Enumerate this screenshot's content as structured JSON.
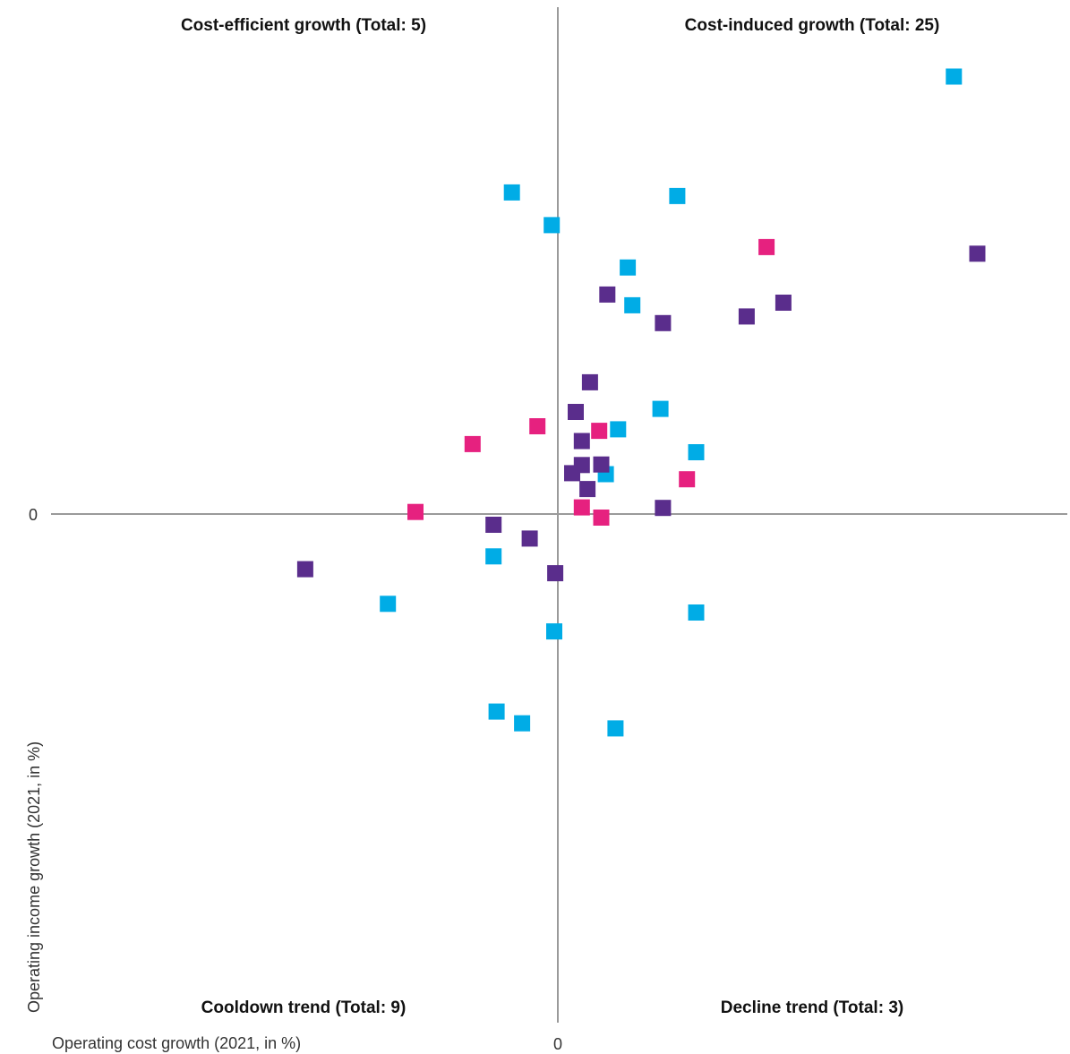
{
  "colors": {
    "series_cyan": "#00ACE6",
    "series_purple": "#5A2D8C",
    "series_magenta": "#E6217F",
    "axis": "#9A9A9A"
  },
  "chart_data": {
    "type": "scatter",
    "title": "",
    "xlabel": "Operating cost growth (2021, in %)",
    "ylabel": "Operating income growth (2021, in %)",
    "x_tick_labels": [
      "0"
    ],
    "y_tick_labels": [
      "0"
    ],
    "quadrants": {
      "top_left": "Cost-efficient growth (Total: 5)",
      "top_right": "Cost-induced growth (Total: 25)",
      "bottom_left": "Cooldown trend (Total: 9)",
      "bottom_right": "Decline trend (Total: 3)"
    },
    "xlim": [
      -1.0,
      1.0
    ],
    "ylim": [
      -1.0,
      1.0
    ],
    "grid": false,
    "legend": "none",
    "series": [
      {
        "color": "#00ACE6",
        "points": [
          [
            0.776,
            0.857
          ],
          [
            -0.09,
            0.63
          ],
          [
            -0.012,
            0.566
          ],
          [
            0.234,
            0.623
          ],
          [
            0.137,
            0.483
          ],
          [
            0.146,
            0.409
          ],
          [
            0.201,
            0.206
          ],
          [
            0.118,
            0.166
          ],
          [
            0.271,
            0.121
          ],
          [
            0.094,
            0.078
          ],
          [
            -0.126,
            -0.083
          ],
          [
            -0.333,
            -0.176
          ],
          [
            0.271,
            -0.193
          ],
          [
            -0.007,
            -0.23
          ],
          [
            -0.12,
            -0.387
          ],
          [
            -0.07,
            -0.41
          ],
          [
            0.113,
            -0.42
          ]
        ]
      },
      {
        "color": "#5A2D8C",
        "points": [
          [
            0.822,
            0.51
          ],
          [
            0.442,
            0.414
          ],
          [
            0.37,
            0.387
          ],
          [
            0.097,
            0.43
          ],
          [
            0.206,
            0.374
          ],
          [
            0.063,
            0.258
          ],
          [
            0.035,
            0.2
          ],
          [
            0.047,
            0.143
          ],
          [
            0.047,
            0.096
          ],
          [
            0.085,
            0.097
          ],
          [
            0.028,
            0.08
          ],
          [
            0.058,
            0.049
          ],
          [
            0.206,
            0.012
          ],
          [
            -0.126,
            -0.021
          ],
          [
            -0.055,
            -0.048
          ],
          [
            -0.005,
            -0.116
          ],
          [
            -0.495,
            -0.108
          ]
        ]
      },
      {
        "color": "#E6217F",
        "points": [
          [
            0.409,
            0.523
          ],
          [
            -0.04,
            0.172
          ],
          [
            -0.167,
            0.137
          ],
          [
            0.081,
            0.163
          ],
          [
            0.253,
            0.068
          ],
          [
            0.047,
            0.013
          ],
          [
            0.085,
            -0.007
          ],
          [
            -0.279,
            0.004
          ]
        ]
      }
    ]
  }
}
